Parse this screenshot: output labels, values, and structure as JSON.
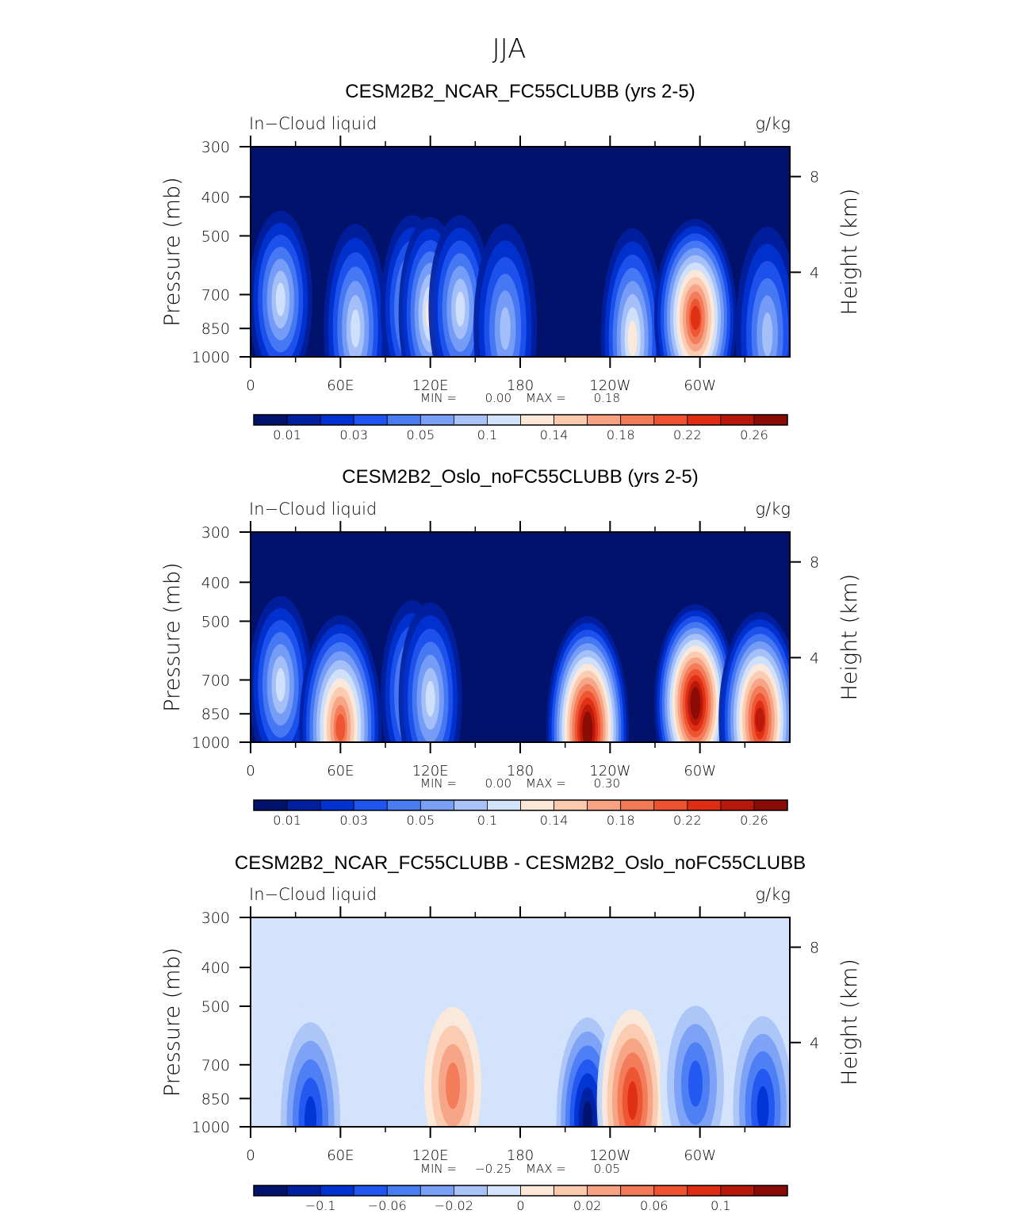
{
  "figure_title": "JJA",
  "chart_data": [
    {
      "type": "heatmap",
      "title": "CESM2B2_NCAR_FC55CLUBB (yrs 2-5)",
      "left_label": "In−Cloud liquid",
      "right_label": "g/kg",
      "ylabel": "Pressure (mb)",
      "y2label": "Height (km)",
      "xticks": [
        {
          "lon": 0,
          "label": "0"
        },
        {
          "lon": 60,
          "label": "60E"
        },
        {
          "lon": 120,
          "label": "120E"
        },
        {
          "lon": 180,
          "label": "180"
        },
        {
          "lon": 240,
          "label": "120W"
        },
        {
          "lon": 300,
          "label": "60W"
        }
      ],
      "xlim": [
        0,
        360
      ],
      "yticks": [
        {
          "p": 300,
          "label": "300"
        },
        {
          "p": 400,
          "label": "400"
        },
        {
          "p": 500,
          "label": "500"
        },
        {
          "p": 700,
          "label": "700"
        },
        {
          "p": 850,
          "label": "850"
        },
        {
          "p": 1000,
          "label": "1000"
        }
      ],
      "ylim": [
        1000,
        300
      ],
      "y2ticks": [
        {
          "km": 8,
          "label": "8"
        },
        {
          "km": 4,
          "label": "4"
        }
      ],
      "stats": {
        "min_label": "MIN =",
        "min": "0.00",
        "max_label": "MAX =",
        "max": "0.18"
      },
      "colorbar_labels": [
        "0.01",
        "0.03",
        "0.05",
        "0.1",
        "0.14",
        "0.18",
        "0.22",
        "0.26"
      ],
      "field_levels": [
        0.005,
        0.01,
        0.02,
        0.03,
        0.04,
        0.05,
        0.07,
        0.1,
        0.12,
        0.14,
        0.16,
        0.18,
        0.2,
        0.22,
        0.24,
        0.26
      ],
      "features": [
        {
          "lon": 20,
          "p": 720,
          "value": 0.06
        },
        {
          "lon": 70,
          "p": 850,
          "value": 0.05
        },
        {
          "lon": 108,
          "p": 760,
          "value": 0.06
        },
        {
          "lon": 120,
          "p": 780,
          "value": 0.07
        },
        {
          "lon": 140,
          "p": 760,
          "value": 0.05
        },
        {
          "lon": 170,
          "p": 850,
          "value": 0.045
        },
        {
          "lon": 255,
          "p": 900,
          "value": 0.07
        },
        {
          "lon": 297,
          "p": 800,
          "value": 0.18
        },
        {
          "lon": 345,
          "p": 880,
          "value": 0.04
        }
      ]
    },
    {
      "type": "heatmap",
      "title": "CESM2B2_Oslo_noFC55CLUBB (yrs 2-5)",
      "left_label": "In−Cloud liquid",
      "right_label": "g/kg",
      "ylabel": "Pressure (mb)",
      "y2label": "Height (km)",
      "xticks": [
        {
          "lon": 0,
          "label": "0"
        },
        {
          "lon": 60,
          "label": "60E"
        },
        {
          "lon": 120,
          "label": "120E"
        },
        {
          "lon": 180,
          "label": "180"
        },
        {
          "lon": 240,
          "label": "120W"
        },
        {
          "lon": 300,
          "label": "60W"
        }
      ],
      "xlim": [
        0,
        360
      ],
      "yticks": [
        {
          "p": 300,
          "label": "300"
        },
        {
          "p": 400,
          "label": "400"
        },
        {
          "p": 500,
          "label": "500"
        },
        {
          "p": 700,
          "label": "700"
        },
        {
          "p": 850,
          "label": "850"
        },
        {
          "p": 1000,
          "label": "1000"
        }
      ],
      "ylim": [
        1000,
        300
      ],
      "y2ticks": [
        {
          "km": 8,
          "label": "8"
        },
        {
          "km": 4,
          "label": "4"
        }
      ],
      "stats": {
        "min_label": "MIN =",
        "min": "0.00",
        "max_label": "MAX =",
        "max": "0.30"
      },
      "colorbar_labels": [
        "0.01",
        "0.03",
        "0.05",
        "0.1",
        "0.14",
        "0.18",
        "0.22",
        "0.26"
      ],
      "field_levels": [
        0.005,
        0.01,
        0.02,
        0.03,
        0.04,
        0.05,
        0.07,
        0.1,
        0.12,
        0.14,
        0.16,
        0.18,
        0.2,
        0.22,
        0.24,
        0.26
      ],
      "features": [
        {
          "lon": 20,
          "p": 720,
          "value": 0.05
        },
        {
          "lon": 60,
          "p": 920,
          "value": 0.16
        },
        {
          "lon": 108,
          "p": 760,
          "value": 0.06
        },
        {
          "lon": 120,
          "p": 780,
          "value": 0.06
        },
        {
          "lon": 225,
          "p": 930,
          "value": 0.3
        },
        {
          "lon": 297,
          "p": 800,
          "value": 0.26
        },
        {
          "lon": 340,
          "p": 880,
          "value": 0.2
        }
      ]
    },
    {
      "type": "heatmap",
      "title": "CESM2B2_NCAR_FC55CLUBB - CESM2B2_Oslo_noFC55CLUBB",
      "left_label": "In−Cloud liquid",
      "right_label": "g/kg",
      "ylabel": "Pressure (mb)",
      "y2label": "Height (km)",
      "xticks": [
        {
          "lon": 0,
          "label": "0"
        },
        {
          "lon": 60,
          "label": "60E"
        },
        {
          "lon": 120,
          "label": "120E"
        },
        {
          "lon": 180,
          "label": "180"
        },
        {
          "lon": 240,
          "label": "120W"
        },
        {
          "lon": 300,
          "label": "60W"
        }
      ],
      "xlim": [
        0,
        360
      ],
      "yticks": [
        {
          "p": 300,
          "label": "300"
        },
        {
          "p": 400,
          "label": "400"
        },
        {
          "p": 500,
          "label": "500"
        },
        {
          "p": 700,
          "label": "700"
        },
        {
          "p": 850,
          "label": "850"
        },
        {
          "p": 1000,
          "label": "1000"
        }
      ],
      "ylim": [
        1000,
        300
      ],
      "y2ticks": [
        {
          "km": 8,
          "label": "8"
        },
        {
          "km": 4,
          "label": "4"
        }
      ],
      "stats": {
        "min_label": "MIN =",
        "min": "−0.25",
        "max_label": "MAX =",
        "max": "0.05"
      },
      "colorbar_labels": [
        "−0.1",
        "−0.06",
        "−0.02",
        "0",
        "0.02",
        "0.06",
        "0.1"
      ],
      "field_levels": [
        -0.12,
        -0.1,
        -0.08,
        -0.06,
        -0.04,
        -0.03,
        -0.02,
        -0.01,
        0,
        0.01,
        0.02,
        0.03,
        0.04,
        0.06,
        0.08,
        0.1,
        0.12
      ],
      "features": [
        {
          "lon": 40,
          "p": 960,
          "value": -0.1
        },
        {
          "lon": 135,
          "p": 790,
          "value": 0.02
        },
        {
          "lon": 128,
          "p": 520,
          "value": -0.02
        },
        {
          "lon": 225,
          "p": 960,
          "value": -0.25
        },
        {
          "lon": 255,
          "p": 860,
          "value": 0.05
        },
        {
          "lon": 297,
          "p": 780,
          "value": -0.08
        },
        {
          "lon": 342,
          "p": 900,
          "value": -0.1
        }
      ]
    }
  ]
}
